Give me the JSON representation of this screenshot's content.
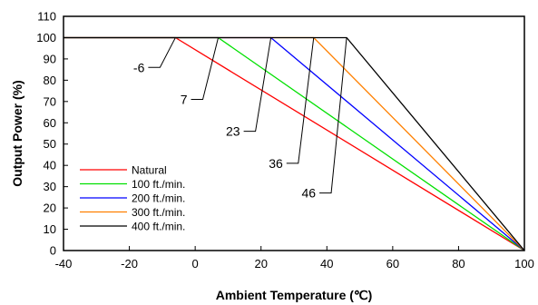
{
  "chart_data": {
    "type": "line",
    "xlabel": "Ambient Temperature (℃)",
    "ylabel": "Output Power (%)",
    "xlim": [
      -40,
      100
    ],
    "ylim": [
      0,
      110
    ],
    "x_ticks": [
      -40,
      -20,
      0,
      20,
      40,
      60,
      80,
      100
    ],
    "y_ticks": [
      0,
      10,
      20,
      30,
      40,
      50,
      60,
      70,
      80,
      90,
      100,
      110
    ],
    "grid": false,
    "legend_position": "bottom-left",
    "series": [
      {
        "name": "Natural",
        "color": "#ff0000",
        "x": [
          -40,
          -6,
          100
        ],
        "y": [
          100,
          100,
          0
        ]
      },
      {
        "name": "100 ft./min.",
        "color": "#00e000",
        "x": [
          -40,
          7,
          100
        ],
        "y": [
          100,
          100,
          0
        ]
      },
      {
        "name": "200 ft./min.",
        "color": "#0000ff",
        "x": [
          -40,
          23,
          100
        ],
        "y": [
          100,
          100,
          0
        ]
      },
      {
        "name": "300 ft./min.",
        "color": "#ff8000",
        "x": [
          -40,
          36,
          100
        ],
        "y": [
          100,
          100,
          0
        ]
      },
      {
        "name": "400 ft./min.",
        "color": "#000000",
        "x": [
          -40,
          46,
          100
        ],
        "y": [
          100,
          100,
          0
        ]
      }
    ],
    "annotations": [
      {
        "label": "-6",
        "x": -6,
        "y": 100,
        "label_y": 86
      },
      {
        "label": "7",
        "x": 7,
        "y": 100,
        "label_y": 71
      },
      {
        "label": "23",
        "x": 23,
        "y": 100,
        "label_y": 56
      },
      {
        "label": "36",
        "x": 36,
        "y": 100,
        "label_y": 41
      },
      {
        "label": "46",
        "x": 46,
        "y": 100,
        "label_y": 27
      }
    ]
  }
}
